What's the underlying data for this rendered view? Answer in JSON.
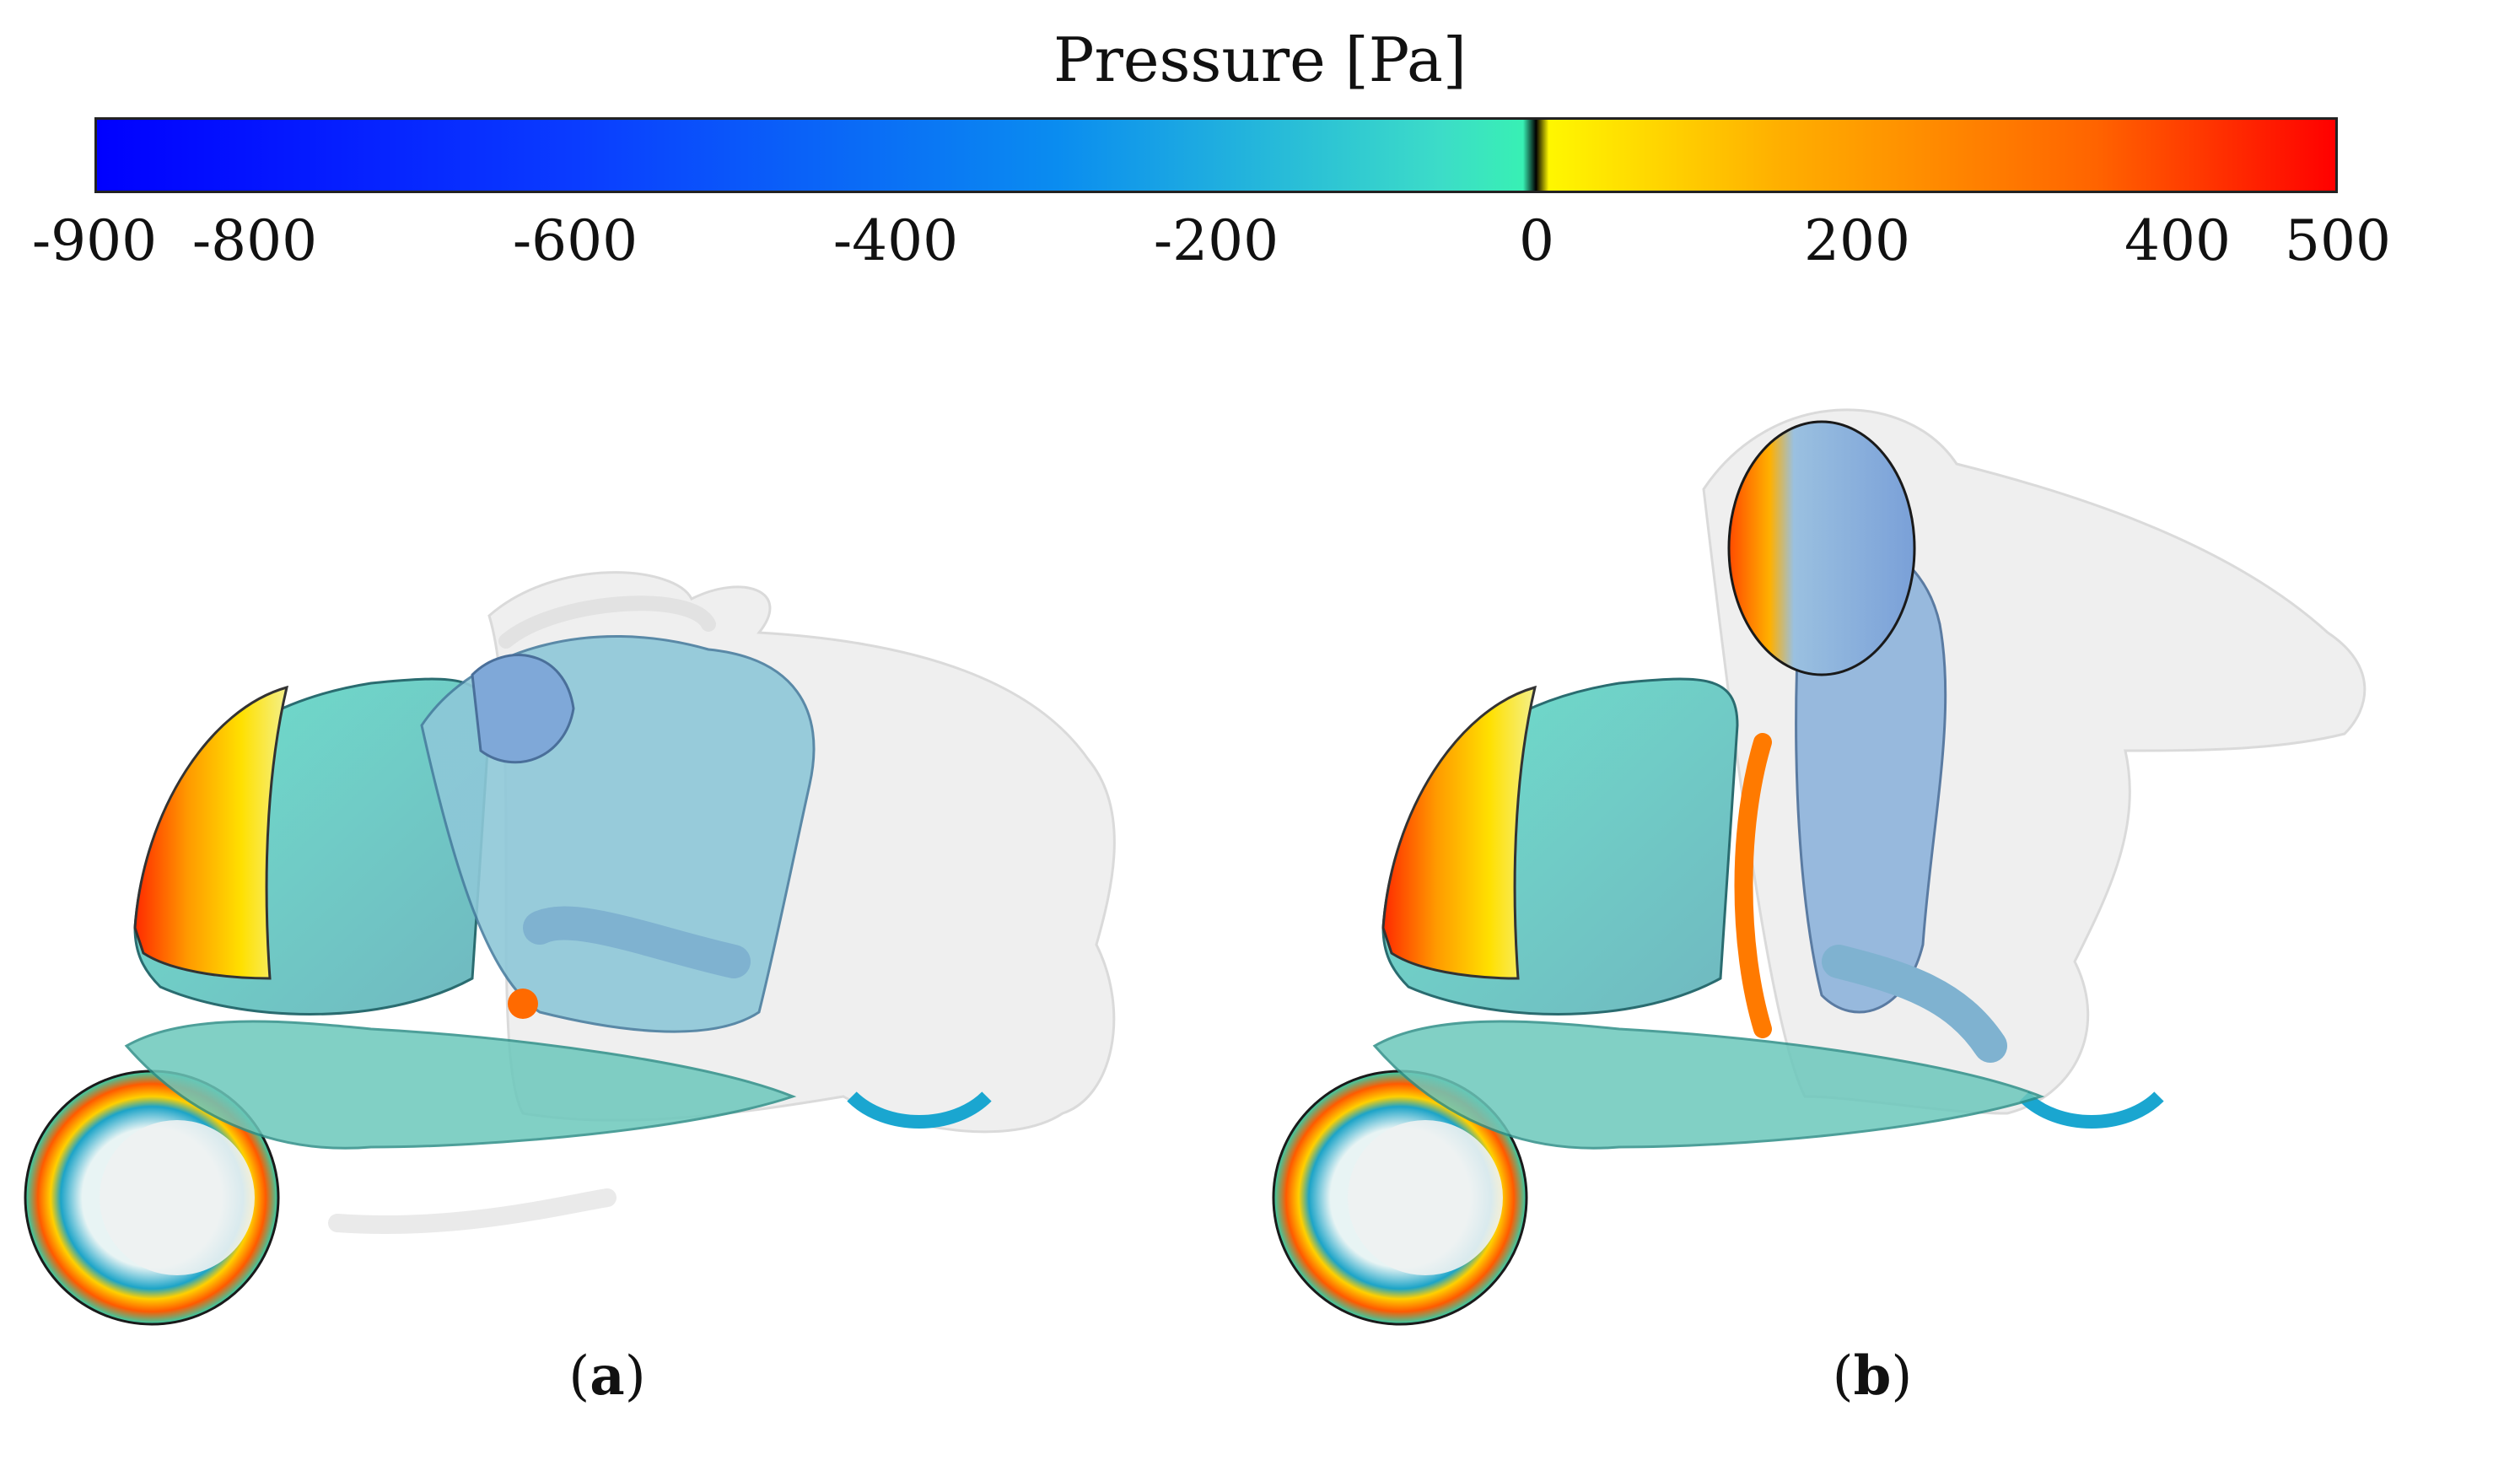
{
  "legend": {
    "title": "Pressure [Pa]",
    "min": -900,
    "max": 500,
    "ticks": [
      "-900",
      "-800",
      "-600",
      "-400",
      "-200",
      "0",
      "200",
      "400",
      "500"
    ],
    "tick_values": [
      -900,
      -800,
      -600,
      -400,
      -200,
      0,
      200,
      400,
      500
    ],
    "stops": [
      {
        "value": -900,
        "color": "#0000ff"
      },
      {
        "value": -600,
        "color": "#0a3cff"
      },
      {
        "value": -300,
        "color": "#0a8cf0"
      },
      {
        "value": -60,
        "color": "#3cdcc8"
      },
      {
        "value": -8,
        "color": "#38f0b4"
      },
      {
        "value": 0,
        "color": "#000000"
      },
      {
        "value": 8,
        "color": "#fff700"
      },
      {
        "value": 150,
        "color": "#ffb000"
      },
      {
        "value": 350,
        "color": "#ff6400"
      },
      {
        "value": 500,
        "color": "#ff0000"
      }
    ]
  },
  "panels": [
    {
      "label": "a",
      "caption_open": "(",
      "caption_close": ")",
      "rider_posture": "tucked"
    },
    {
      "label": "b",
      "caption_open": "(",
      "caption_close": ")",
      "rider_posture": "upright"
    }
  ]
}
